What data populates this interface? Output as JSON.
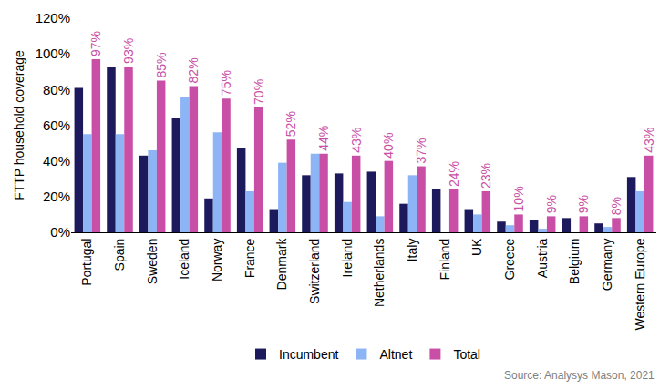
{
  "chart_data": {
    "type": "bar",
    "y_label": "FTTP household coverage",
    "annotation": "Source: Analysys Mason, 2021",
    "categories": [
      "Portugal",
      "Spain",
      "Sweden",
      "Iceland",
      "Norway",
      "France",
      "Denmark",
      "Switzerland",
      "Ireland",
      "Netherlands",
      "Italy",
      "Finland",
      "UK",
      "Greece",
      "Austria",
      "Belgium",
      "Germany",
      "Western Europe"
    ],
    "series": [
      {
        "name": "Incumbent",
        "color": "#1c1a5c",
        "values": [
          81,
          93,
          43,
          64,
          19,
          47,
          13,
          32,
          33,
          34,
          16,
          24,
          13,
          6,
          7,
          8,
          5,
          31
        ]
      },
      {
        "name": "Altnet",
        "color": "#8db4f5",
        "values": [
          55,
          55,
          46,
          76,
          56,
          23,
          39,
          44,
          17,
          9,
          32,
          0,
          10,
          4,
          2,
          0,
          3,
          23
        ]
      },
      {
        "name": "Total",
        "color": "#c94fa6",
        "data_labels": true,
        "values": [
          97,
          93,
          85,
          82,
          75,
          70,
          52,
          44,
          43,
          40,
          37,
          24,
          23,
          10,
          9,
          9,
          8,
          43
        ],
        "value_labels": [
          "97%",
          "93%",
          "85%",
          "82%",
          "75%",
          "70%",
          "52%",
          "44%",
          "43%",
          "40%",
          "37%",
          "24%",
          "23%",
          "10%",
          "9%",
          "9%",
          "8%",
          "43%"
        ]
      }
    ],
    "ylim": [
      0,
      120
    ],
    "yticks": [
      {
        "value": 0,
        "label": "0%"
      },
      {
        "value": 20,
        "label": "20%"
      },
      {
        "value": 40,
        "label": "40%"
      },
      {
        "value": 60,
        "label": "60%"
      },
      {
        "value": 80,
        "label": "80%"
      },
      {
        "value": 100,
        "label": "100%"
      },
      {
        "value": 120,
        "label": "120%"
      }
    ],
    "grid": false,
    "legend": "bottom"
  }
}
